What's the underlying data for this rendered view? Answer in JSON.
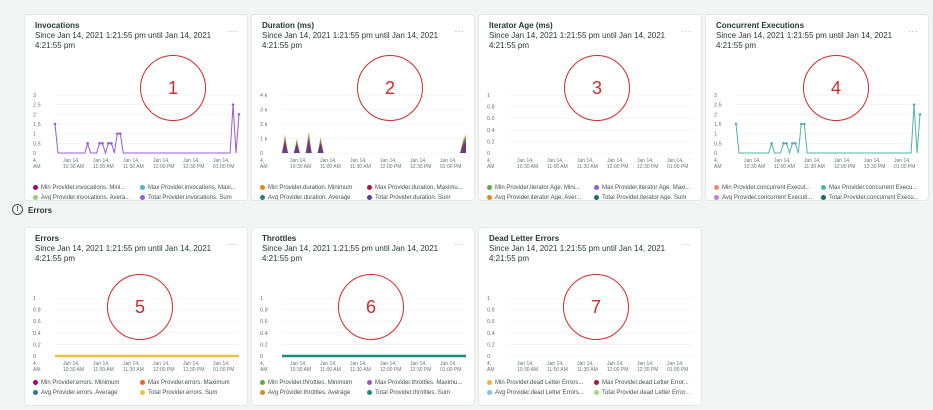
{
  "time_range": "Since Jan 14, 2021 1:21:55 pm until Jan 14, 2021 4:21:55 pm",
  "menu_label": "···",
  "errors_section_label": "Errors",
  "errors_icon": "info-circle-icon",
  "x_ticks": [
    "Jan 14,\n10:30 AM",
    "Jan 14,\n11:00 AM",
    "Jan 14,\n11:30 AM",
    "Jan 14,\n12:00 PM",
    "Jan 14,\n12:30 PM",
    "Jan 14,\n01:00 PM"
  ],
  "x_first_tick": "4,\nAM",
  "cards": [
    {
      "title": "Invocations",
      "marker": "1",
      "y_ticks": [
        "3",
        "2.5",
        "2",
        "1.5",
        "1",
        "0.5",
        "0"
      ],
      "legend": [
        {
          "label": "Min Provider.invocations. Mini...",
          "color": "#a4007e"
        },
        {
          "label": "Max Provider.invocations. Maxi...",
          "color": "#4fb3d9"
        },
        {
          "label": "Avg Provider.invocations. Avera...",
          "color": "#8fd175"
        },
        {
          "label": "Total Provider.invocations. Sum",
          "color": "#9b59d0"
        }
      ]
    },
    {
      "title": "Duration (ms)",
      "marker": "2",
      "y_ticks": [
        "4 k",
        "3 k",
        "2 k",
        "1 k",
        "0"
      ],
      "legend": [
        {
          "label": "Min Provider.duration. Minimum",
          "color": "#e08a1e"
        },
        {
          "label": "Max Provider.duration. Maximu...",
          "color": "#a11a4b"
        },
        {
          "label": "Avg Provider.duration. Average",
          "color": "#2f7a8f"
        },
        {
          "label": "Total Provider.duration. Sum",
          "color": "#5c3fa3"
        }
      ]
    },
    {
      "title": "Iterator Age (ms)",
      "marker": "3",
      "y_ticks": [
        "1",
        "0.8",
        "0.6",
        "0.4",
        "0.2",
        "0"
      ],
      "legend": [
        {
          "label": "Min Provider.iterator Age. Mini...",
          "color": "#5fa94a"
        },
        {
          "label": "Max Provider.iterator Age. Maxi...",
          "color": "#9b59d0"
        },
        {
          "label": "Avg Provider.iterator Age. Aver...",
          "color": "#e08a1e"
        },
        {
          "label": "Total Provider.iterator Age. Sum",
          "color": "#1b6b6b"
        }
      ]
    },
    {
      "title": "Concurrent Executions",
      "marker": "4",
      "y_ticks": [
        "3",
        "2.5",
        "2",
        "1.5",
        "1",
        "0.5",
        "0"
      ],
      "legend": [
        {
          "label": "Min Provider.concurrent Execut...",
          "color": "#f08a6a"
        },
        {
          "label": "Max Provider.concurrent Execu...",
          "color": "#4fb3a9"
        },
        {
          "label": "Avg Provider.concurrent Executi...",
          "color": "#c27bd6"
        },
        {
          "label": "Total Provider.concurrent Execu...",
          "color": "#1b6b6b"
        }
      ]
    },
    {
      "title": "Errors",
      "marker": "5",
      "y_ticks": [
        "1",
        "0.8",
        "0.6",
        "0.4",
        "0.2",
        "0"
      ],
      "legend": [
        {
          "label": "Min Provider.errors. Minimum",
          "color": "#a4007e"
        },
        {
          "label": "Max Provider.errors. Maximum",
          "color": "#e0642a"
        },
        {
          "label": "Avg Provider.errors. Average",
          "color": "#2f7a8f"
        },
        {
          "label": "Total Provider.errors. Sum",
          "color": "#f0c040"
        }
      ]
    },
    {
      "title": "Throttles",
      "marker": "6",
      "y_ticks": [
        "1",
        "0.8",
        "0.6",
        "0.4",
        "0.2",
        "0"
      ],
      "legend": [
        {
          "label": "Min Provider.throttles. Minimum",
          "color": "#5fa94a"
        },
        {
          "label": "Max Provider.throttles. Maximu...",
          "color": "#9b59d0"
        },
        {
          "label": "Avg Provider.throttles. Average",
          "color": "#e08a1e"
        },
        {
          "label": "Total Provider.throttles. Sum",
          "color": "#1b8b7b"
        }
      ]
    },
    {
      "title": "Dead Letter Errors",
      "marker": "7",
      "y_ticks": [
        "1",
        "0.8",
        "0.6",
        "0.4",
        "0.2",
        "0"
      ],
      "legend": [
        {
          "label": "Min Provider.dead Letter Errors...",
          "color": "#f0b040"
        },
        {
          "label": "Max Provider.dead Letter Error...",
          "color": "#a11a4b"
        },
        {
          "label": "Avg Provider.dead Letter Errors...",
          "color": "#7fc6e0"
        },
        {
          "label": "Total Provider.dead Letter Error...",
          "color": "#a8d67a"
        }
      ]
    }
  ],
  "chart_data": [
    {
      "type": "line",
      "title": "Invocations",
      "ylim": [
        0,
        3
      ],
      "series_color": "#9b59d0",
      "values": [
        1.5,
        0,
        0,
        0,
        0,
        0,
        0,
        0,
        0,
        0,
        0,
        0.5,
        0,
        0,
        0,
        0.5,
        0.5,
        0,
        0.5,
        0.5,
        0,
        1,
        1,
        0,
        0,
        0,
        0,
        0,
        0,
        0,
        0,
        0,
        0,
        0,
        0,
        0,
        0,
        0,
        0,
        0,
        0,
        0,
        0,
        0,
        0,
        0,
        0,
        0,
        0,
        0,
        0,
        0,
        0,
        0,
        0,
        0,
        0,
        0,
        0,
        0,
        2.5,
        0,
        2
      ]
    },
    {
      "type": "area",
      "title": "Duration (ms)",
      "ylim": [
        0,
        4000
      ],
      "series_color": "#a11a4b",
      "values": [
        0,
        1300,
        0,
        0,
        0,
        1000,
        0,
        0,
        0,
        1500,
        0,
        0,
        0,
        1100,
        0,
        0,
        0,
        0,
        0,
        0,
        0,
        0,
        0,
        0,
        0,
        0,
        0,
        0,
        0,
        0,
        0,
        0,
        0,
        0,
        0,
        0,
        0,
        0,
        0,
        0,
        0,
        0,
        0,
        0,
        0,
        0,
        0,
        0,
        0,
        0,
        0,
        0,
        0,
        0,
        0,
        0,
        0,
        0,
        0,
        0,
        0,
        900,
        1300
      ]
    },
    {
      "type": "line",
      "title": "Iterator Age (ms)",
      "ylim": [
        0,
        1
      ],
      "values": []
    },
    {
      "type": "line",
      "title": "Concurrent Executions",
      "ylim": [
        0,
        3
      ],
      "series_color": "#4fb3a9",
      "values": [
        1.5,
        0,
        0,
        0,
        0,
        0,
        0,
        0,
        0,
        0,
        0,
        0,
        0.5,
        0,
        0,
        0,
        0.5,
        0.5,
        0,
        0.5,
        0.5,
        0,
        1.5,
        1.5,
        0,
        0,
        0,
        0,
        0,
        0,
        0,
        0,
        0,
        0,
        0,
        0,
        0,
        0,
        0,
        0,
        0,
        0,
        0,
        0,
        0,
        0,
        0,
        0,
        0,
        0,
        0,
        0,
        0,
        0,
        0,
        0,
        0,
        0,
        0,
        0,
        2.5,
        0,
        2
      ]
    },
    {
      "type": "line",
      "title": "Errors",
      "ylim": [
        0,
        1
      ],
      "series_color": "#f0c040",
      "values": "flat-zero"
    },
    {
      "type": "line",
      "title": "Throttles",
      "ylim": [
        0,
        1
      ],
      "series_color": "#1b8b7b",
      "values": "flat-zero"
    },
    {
      "type": "line",
      "title": "Dead Letter Errors",
      "ylim": [
        0,
        1
      ],
      "values": []
    }
  ]
}
